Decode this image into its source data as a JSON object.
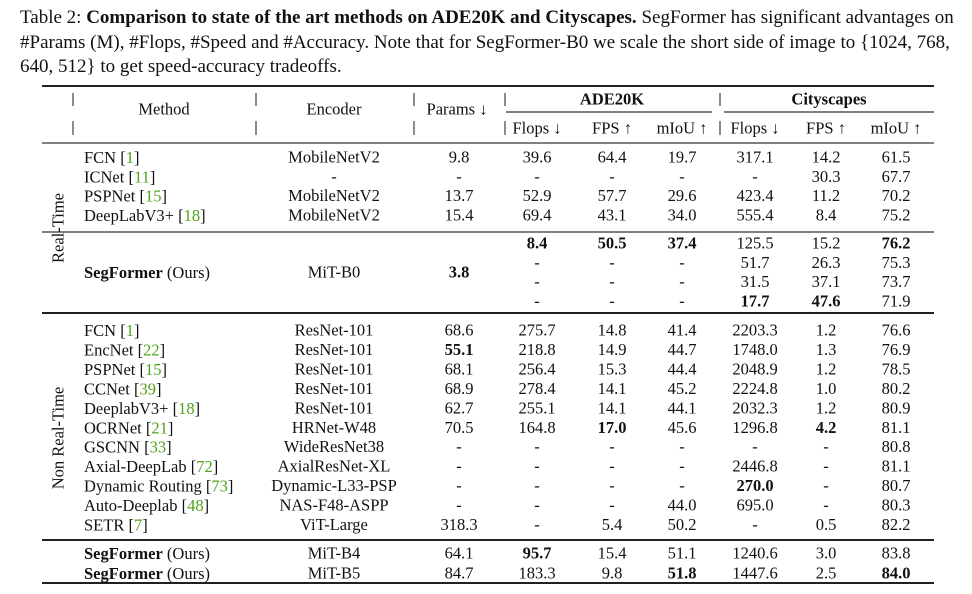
{
  "caption": {
    "label": "Table 2: ",
    "title": "Comparison to state of the art methods on ADE20K and Cityscapes.",
    "body": " SegFormer has significant advantages on #Params (M), #Flops, #Speed and #Accuracy. Note that for SegFormer-B0 we scale the short side of image to {1024, 768, 640, 512} to get speed-accuracy tradeoffs."
  },
  "header": {
    "method": "Method",
    "encoder": "Encoder",
    "params": "Params ↓",
    "ade20k": "ADE20K",
    "cityscapes": "Cityscapes",
    "flops": "Flops ↓",
    "fps": "FPS ↑",
    "miou": "mIoU ↑"
  },
  "groups": {
    "realtime": "Real-Time",
    "nonrealtime": "Non Real-Time"
  },
  "realtime_rows": [
    {
      "name": "FCN",
      "cite": "1",
      "encoder": "MobileNetV2",
      "params": "9.8",
      "a_flops": "39.6",
      "a_fps": "64.4",
      "a_miou": "19.7",
      "c_flops": "317.1",
      "c_fps": "14.2",
      "c_miou": "61.5"
    },
    {
      "name": "ICNet",
      "cite": "11",
      "encoder": "-",
      "params": "-",
      "a_flops": "-",
      "a_fps": "-",
      "a_miou": "-",
      "c_flops": "-",
      "c_fps": "30.3",
      "c_miou": "67.7"
    },
    {
      "name": "PSPNet",
      "cite": "15",
      "encoder": "MobileNetV2",
      "params": "13.7",
      "a_flops": "52.9",
      "a_fps": "57.7",
      "a_miou": "29.6",
      "c_flops": "423.4",
      "c_fps": "11.2",
      "c_miou": "70.2"
    },
    {
      "name": "DeepLabV3+",
      "cite": "18",
      "encoder": "MobileNetV2",
      "params": "15.4",
      "a_flops": "69.4",
      "a_fps": "43.1",
      "a_miou": "34.0",
      "c_flops": "555.4",
      "c_fps": "8.4",
      "c_miou": "75.2"
    }
  ],
  "b0_block": {
    "name": "SegFormer",
    "suffix": " (Ours)",
    "encoder": "MiT-B0",
    "params": "3.8",
    "rows": [
      {
        "a_flops": "8.4",
        "a_fps": "50.5",
        "a_miou": "37.4",
        "c_flops": "125.5",
        "c_fps": "15.2",
        "c_miou": "76.2"
      },
      {
        "a_flops": "-",
        "a_fps": "-",
        "a_miou": "-",
        "c_flops": "51.7",
        "c_fps": "26.3",
        "c_miou": "75.3"
      },
      {
        "a_flops": "-",
        "a_fps": "-",
        "a_miou": "-",
        "c_flops": "31.5",
        "c_fps": "37.1",
        "c_miou": "73.7"
      },
      {
        "a_flops": "-",
        "a_fps": "-",
        "a_miou": "-",
        "c_flops": "17.7",
        "c_fps": "47.6",
        "c_miou": "71.9"
      }
    ]
  },
  "nonrealtime_rows": [
    {
      "name": "FCN",
      "cite": "1",
      "encoder": "ResNet-101",
      "params": "68.6",
      "a_flops": "275.7",
      "a_fps": "14.8",
      "a_miou": "41.4",
      "c_flops": "2203.3",
      "c_fps": "1.2",
      "c_miou": "76.6"
    },
    {
      "name": "EncNet",
      "cite": "22",
      "encoder": "ResNet-101",
      "params": "55.1",
      "a_flops": "218.8",
      "a_fps": "14.9",
      "a_miou": "44.7",
      "c_flops": "1748.0",
      "c_fps": "1.3",
      "c_miou": "76.9"
    },
    {
      "name": "PSPNet",
      "cite": "15",
      "encoder": "ResNet-101",
      "params": "68.1",
      "a_flops": "256.4",
      "a_fps": "15.3",
      "a_miou": "44.4",
      "c_flops": "2048.9",
      "c_fps": "1.2",
      "c_miou": "78.5"
    },
    {
      "name": "CCNet",
      "cite": "39",
      "encoder": "ResNet-101",
      "params": "68.9",
      "a_flops": "278.4",
      "a_fps": "14.1",
      "a_miou": "45.2",
      "c_flops": "2224.8",
      "c_fps": "1.0",
      "c_miou": "80.2"
    },
    {
      "name": "DeeplabV3+",
      "cite": "18",
      "encoder": "ResNet-101",
      "params": "62.7",
      "a_flops": "255.1",
      "a_fps": "14.1",
      "a_miou": "44.1",
      "c_flops": "2032.3",
      "c_fps": "1.2",
      "c_miou": "80.9"
    },
    {
      "name": "OCRNet",
      "cite": "21",
      "encoder": "HRNet-W48",
      "params": "70.5",
      "a_flops": "164.8",
      "a_fps": "17.0",
      "a_miou": "45.6",
      "c_flops": "1296.8",
      "c_fps": "4.2",
      "c_miou": "81.1"
    },
    {
      "name": "GSCNN",
      "cite": "33",
      "encoder": "WideResNet38",
      "params": "-",
      "a_flops": "-",
      "a_fps": "-",
      "a_miou": "-",
      "c_flops": "-",
      "c_fps": "-",
      "c_miou": "80.8"
    },
    {
      "name": "Axial-DeepLab",
      "cite": "72",
      "encoder": "AxialResNet-XL",
      "params": "-",
      "a_flops": "-",
      "a_fps": "-",
      "a_miou": "-",
      "c_flops": "2446.8",
      "c_fps": "-",
      "c_miou": "81.1"
    },
    {
      "name": "Dynamic Routing",
      "cite": "73",
      "encoder": "Dynamic-L33-PSP",
      "params": "-",
      "a_flops": "-",
      "a_fps": "-",
      "a_miou": "-",
      "c_flops": "270.0",
      "c_fps": "-",
      "c_miou": "80.7"
    },
    {
      "name": "Auto-Deeplab",
      "cite": "48",
      "encoder": "NAS-F48-ASPP",
      "params": "-",
      "a_flops": "-",
      "a_fps": "-",
      "a_miou": "44.0",
      "c_flops": "695.0",
      "c_fps": "-",
      "c_miou": "80.3"
    },
    {
      "name": "SETR",
      "cite": "7",
      "encoder": "ViT-Large",
      "params": "318.3",
      "a_flops": "-",
      "a_fps": "5.4",
      "a_miou": "50.2",
      "c_flops": "-",
      "c_fps": "0.5",
      "c_miou": "82.2"
    }
  ],
  "ours_rows": [
    {
      "name": "SegFormer",
      "suffix": " (Ours)",
      "encoder": "MiT-B4",
      "params": "64.1",
      "a_flops": "95.7",
      "a_fps": "15.4",
      "a_miou": "51.1",
      "c_flops": "1240.6",
      "c_fps": "3.0",
      "c_miou": "83.8"
    },
    {
      "name": "SegFormer",
      "suffix": " (Ours)",
      "encoder": "MiT-B5",
      "params": "84.7",
      "a_flops": "183.3",
      "a_fps": "9.8",
      "a_miou": "51.8",
      "c_flops": "1447.6",
      "c_fps": "2.5",
      "c_miou": "84.0"
    }
  ],
  "bold_cells": [
    "b0.params",
    "b0.0.a_flops",
    "b0.0.a_fps",
    "b0.0.a_miou",
    "b0.0.c_miou",
    "b0.3.c_flops",
    "b0.3.c_fps",
    "nrt.1.params",
    "nrt.5.a_fps",
    "nrt.5.c_fps",
    "nrt.8.c_flops",
    "ours.0.a_flops",
    "ours.1.a_miou",
    "ours.1.c_miou"
  ],
  "colors": {
    "text": "#111111",
    "citation": "#4fa319",
    "rule": "#000000"
  }
}
